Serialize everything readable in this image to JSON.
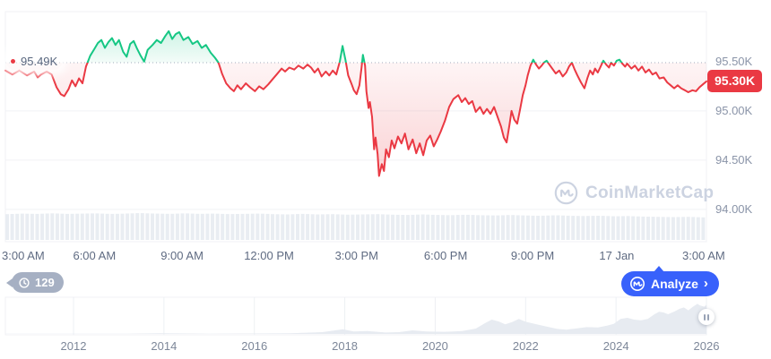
{
  "main_chart": {
    "baseline_label": "95.49K",
    "baseline_value": 95.49,
    "current_price_label": "95.30K",
    "current_price_value": 95.3,
    "y_ticks": [
      {
        "label": "95.50K",
        "value": 95.5,
        "grid": false
      },
      {
        "label": "95.00K",
        "value": 95.0,
        "grid": true
      },
      {
        "label": "94.50K",
        "value": 94.5,
        "grid": true
      },
      {
        "label": "94.00K",
        "value": 94.0,
        "grid": true
      }
    ],
    "x_ticks": [
      {
        "label": "3:00 AM",
        "f": 0.003
      },
      {
        "label": "6:00 AM",
        "f": 0.127
      },
      {
        "label": "9:00 AM",
        "f": 0.252
      },
      {
        "label": "12:00 PM",
        "f": 0.376
      },
      {
        "label": "3:00 PM",
        "f": 0.501
      },
      {
        "label": "6:00 PM",
        "f": 0.628
      },
      {
        "label": "9:00 PM",
        "f": 0.752
      },
      {
        "label": "17 Jan",
        "f": 0.872
      },
      {
        "label": "3:00 AM",
        "f": 0.996
      }
    ]
  },
  "watermark": {
    "text": "CoinMarketCap",
    "icon": "coinmarketcap-logo-icon"
  },
  "history_badge": {
    "count": "129",
    "icon": "clock-history-icon"
  },
  "analyze_button": {
    "label": "Analyze",
    "chevron": "›",
    "icon": "coinmarketcap-logo-icon"
  },
  "navigator": {
    "year_ticks": [
      {
        "label": "2012",
        "year": 2012
      },
      {
        "label": "2014",
        "year": 2014
      },
      {
        "label": "2016",
        "year": 2016
      },
      {
        "label": "2018",
        "year": 2018
      },
      {
        "label": "2020",
        "year": 2020
      },
      {
        "label": "2022",
        "year": 2022
      },
      {
        "label": "2024",
        "year": 2024
      },
      {
        "label": "2026",
        "year": 2026
      }
    ],
    "handle_icon": "pause-handle-icon"
  },
  "colors": {
    "up": "#16c784",
    "down": "#ea3943",
    "accent_blue": "#3861fb",
    "badge_gray": "#a6b0c3",
    "axis_text": "#8a94a8",
    "x_axis_text": "#5f6b82",
    "gridline": "#f0f2f5",
    "dotted_baseline": "#a2abbc",
    "volume_fill": "#e9edf2",
    "nav_fill": "#e7ebf1",
    "watermark": "#ccd3e1"
  },
  "chart_data": [
    {
      "type": "line",
      "name": "BTC price, 24h window (3:00 AM to 3:00 AM / 17 Jan)",
      "y_unit": "thousand USD",
      "x_unit": "fraction of visible time window",
      "baseline": 95.49,
      "up_color": "#16c784",
      "down_color": "#ea3943",
      "points": [
        [
          0.0,
          95.41
        ],
        [
          0.01,
          95.37
        ],
        [
          0.02,
          95.41
        ],
        [
          0.031,
          95.36
        ],
        [
          0.041,
          95.4
        ],
        [
          0.046,
          95.34
        ],
        [
          0.051,
          95.37
        ],
        [
          0.059,
          95.4
        ],
        [
          0.066,
          95.37
        ],
        [
          0.073,
          95.24
        ],
        [
          0.079,
          95.17
        ],
        [
          0.084,
          95.15
        ],
        [
          0.09,
          95.22
        ],
        [
          0.095,
          95.31
        ],
        [
          0.1,
          95.25
        ],
        [
          0.105,
          95.33
        ],
        [
          0.11,
          95.28
        ],
        [
          0.115,
          95.45
        ],
        [
          0.121,
          95.56
        ],
        [
          0.127,
          95.63
        ],
        [
          0.132,
          95.69
        ],
        [
          0.137,
          95.72
        ],
        [
          0.142,
          95.64
        ],
        [
          0.147,
          95.7
        ],
        [
          0.152,
          95.74
        ],
        [
          0.157,
          95.67
        ],
        [
          0.162,
          95.72
        ],
        [
          0.168,
          95.6
        ],
        [
          0.173,
          95.55
        ],
        [
          0.178,
          95.68
        ],
        [
          0.183,
          95.71
        ],
        [
          0.188,
          95.63
        ],
        [
          0.193,
          95.56
        ],
        [
          0.198,
          95.5
        ],
        [
          0.203,
          95.62
        ],
        [
          0.21,
          95.67
        ],
        [
          0.216,
          95.72
        ],
        [
          0.222,
          95.69
        ],
        [
          0.228,
          95.76
        ],
        [
          0.233,
          95.81
        ],
        [
          0.238,
          95.73
        ],
        [
          0.243,
          95.78
        ],
        [
          0.248,
          95.8
        ],
        [
          0.254,
          95.72
        ],
        [
          0.261,
          95.75
        ],
        [
          0.267,
          95.68
        ],
        [
          0.274,
          95.71
        ],
        [
          0.28,
          95.64
        ],
        [
          0.286,
          95.67
        ],
        [
          0.293,
          95.59
        ],
        [
          0.299,
          95.54
        ],
        [
          0.304,
          95.49
        ],
        [
          0.309,
          95.38
        ],
        [
          0.315,
          95.28
        ],
        [
          0.321,
          95.23
        ],
        [
          0.326,
          95.2
        ],
        [
          0.331,
          95.26
        ],
        [
          0.336,
          95.22
        ],
        [
          0.343,
          95.28
        ],
        [
          0.349,
          95.24
        ],
        [
          0.356,
          95.2
        ],
        [
          0.362,
          95.25
        ],
        [
          0.368,
          95.22
        ],
        [
          0.375,
          95.27
        ],
        [
          0.381,
          95.32
        ],
        [
          0.387,
          95.37
        ],
        [
          0.394,
          95.43
        ],
        [
          0.399,
          95.4
        ],
        [
          0.405,
          95.44
        ],
        [
          0.412,
          95.42
        ],
        [
          0.418,
          95.46
        ],
        [
          0.425,
          95.43
        ],
        [
          0.431,
          95.47
        ],
        [
          0.436,
          95.44
        ],
        [
          0.441,
          95.39
        ],
        [
          0.446,
          95.43
        ],
        [
          0.451,
          95.35
        ],
        [
          0.457,
          95.4
        ],
        [
          0.462,
          95.36
        ],
        [
          0.467,
          95.41
        ],
        [
          0.472,
          95.37
        ],
        [
          0.477,
          95.5
        ],
        [
          0.481,
          95.66
        ],
        [
          0.485,
          95.52
        ],
        [
          0.489,
          95.36
        ],
        [
          0.494,
          95.27
        ],
        [
          0.497,
          95.21
        ],
        [
          0.501,
          95.17
        ],
        [
          0.505,
          95.26
        ],
        [
          0.508,
          95.44
        ],
        [
          0.51,
          95.57
        ],
        [
          0.513,
          95.46
        ],
        [
          0.515,
          95.2
        ],
        [
          0.518,
          95.03
        ],
        [
          0.52,
          95.09
        ],
        [
          0.523,
          94.94
        ],
        [
          0.526,
          94.61
        ],
        [
          0.528,
          94.73
        ],
        [
          0.531,
          94.56
        ],
        [
          0.533,
          94.34
        ],
        [
          0.537,
          94.46
        ],
        [
          0.54,
          94.39
        ],
        [
          0.543,
          94.61
        ],
        [
          0.547,
          94.53
        ],
        [
          0.551,
          94.7
        ],
        [
          0.555,
          94.62
        ],
        [
          0.56,
          94.74
        ],
        [
          0.565,
          94.67
        ],
        [
          0.57,
          94.77
        ],
        [
          0.575,
          94.61
        ],
        [
          0.581,
          94.71
        ],
        [
          0.586,
          94.57
        ],
        [
          0.591,
          94.67
        ],
        [
          0.596,
          94.55
        ],
        [
          0.601,
          94.7
        ],
        [
          0.606,
          94.75
        ],
        [
          0.611,
          94.64
        ],
        [
          0.616,
          94.71
        ],
        [
          0.621,
          94.79
        ],
        [
          0.627,
          94.9
        ],
        [
          0.633,
          95.04
        ],
        [
          0.639,
          95.12
        ],
        [
          0.646,
          95.16
        ],
        [
          0.651,
          95.09
        ],
        [
          0.656,
          95.13
        ],
        [
          0.661,
          95.07
        ],
        [
          0.666,
          95.1
        ],
        [
          0.671,
          94.99
        ],
        [
          0.677,
          95.04
        ],
        [
          0.682,
          94.97
        ],
        [
          0.687,
          95.02
        ],
        [
          0.692,
          94.97
        ],
        [
          0.697,
          95.04
        ],
        [
          0.702,
          94.94
        ],
        [
          0.707,
          94.84
        ],
        [
          0.711,
          94.73
        ],
        [
          0.715,
          94.68
        ],
        [
          0.719,
          94.86
        ],
        [
          0.722,
          95.0
        ],
        [
          0.726,
          94.91
        ],
        [
          0.73,
          94.87
        ],
        [
          0.734,
          95.01
        ],
        [
          0.738,
          95.16
        ],
        [
          0.742,
          95.26
        ],
        [
          0.745,
          95.36
        ],
        [
          0.749,
          95.46
        ],
        [
          0.753,
          95.52
        ],
        [
          0.757,
          95.47
        ],
        [
          0.761,
          95.43
        ],
        [
          0.765,
          95.46
        ],
        [
          0.768,
          95.49
        ],
        [
          0.772,
          95.51
        ],
        [
          0.776,
          95.47
        ],
        [
          0.78,
          95.43
        ],
        [
          0.785,
          95.38
        ],
        [
          0.79,
          95.41
        ],
        [
          0.795,
          95.35
        ],
        [
          0.8,
          95.39
        ],
        [
          0.804,
          95.45
        ],
        [
          0.808,
          95.49
        ],
        [
          0.812,
          95.42
        ],
        [
          0.816,
          95.36
        ],
        [
          0.821,
          95.29
        ],
        [
          0.826,
          95.23
        ],
        [
          0.83,
          95.33
        ],
        [
          0.834,
          95.41
        ],
        [
          0.838,
          95.37
        ],
        [
          0.841,
          95.43
        ],
        [
          0.845,
          95.39
        ],
        [
          0.849,
          95.45
        ],
        [
          0.853,
          95.51
        ],
        [
          0.857,
          95.47
        ],
        [
          0.861,
          95.44
        ],
        [
          0.864,
          95.49
        ],
        [
          0.868,
          95.46
        ],
        [
          0.872,
          95.51
        ],
        [
          0.876,
          95.52
        ],
        [
          0.88,
          95.48
        ],
        [
          0.884,
          95.45
        ],
        [
          0.887,
          95.48
        ],
        [
          0.893,
          95.43
        ],
        [
          0.898,
          95.46
        ],
        [
          0.903,
          95.41
        ],
        [
          0.908,
          95.45
        ],
        [
          0.913,
          95.39
        ],
        [
          0.918,
          95.42
        ],
        [
          0.923,
          95.37
        ],
        [
          0.928,
          95.39
        ],
        [
          0.933,
          95.33
        ],
        [
          0.939,
          95.34
        ],
        [
          0.944,
          95.29
        ],
        [
          0.949,
          95.26
        ],
        [
          0.954,
          95.23
        ],
        [
          0.959,
          95.26
        ],
        [
          0.964,
          95.23
        ],
        [
          0.969,
          95.21
        ],
        [
          0.974,
          95.19
        ],
        [
          0.98,
          95.21
        ],
        [
          0.985,
          95.2
        ],
        [
          0.99,
          95.24
        ],
        [
          0.995,
          95.27
        ],
        [
          1.0,
          95.3
        ]
      ]
    },
    {
      "type": "bar",
      "name": "volume band (bottom of main chart)",
      "y_unit": "relative height 0-1",
      "heights": [
        0.96,
        0.98,
        0.97,
        0.99,
        0.97,
        0.98,
        0.99,
        0.97,
        0.98,
        1.0,
        0.98,
        0.97,
        0.99,
        0.97,
        0.98,
        0.96,
        0.97,
        0.98,
        0.96,
        0.95,
        0.97,
        0.95,
        0.96,
        0.94,
        0.95,
        0.96,
        0.94,
        0.93,
        0.95,
        0.93,
        0.92,
        0.94,
        0.92,
        0.91,
        0.93,
        0.91,
        0.9,
        0.92,
        0.9,
        0.89,
        0.9,
        0.88,
        0.89,
        0.87,
        0.86,
        0.85,
        0.86,
        0.84
      ]
    },
    {
      "type": "area",
      "name": "BTC all-time price navigator (2011-2026)",
      "x_unit": "year",
      "y_unit": "relative height 0-1",
      "points": [
        [
          2010.5,
          0.004
        ],
        [
          2011,
          0.004
        ],
        [
          2012,
          0.005
        ],
        [
          2012.8,
          0.008
        ],
        [
          2013.2,
          0.006
        ],
        [
          2013.9,
          0.02
        ],
        [
          2014.3,
          0.014
        ],
        [
          2015,
          0.006
        ],
        [
          2016,
          0.012
        ],
        [
          2016.8,
          0.02
        ],
        [
          2017.5,
          0.05
        ],
        [
          2017.95,
          0.13
        ],
        [
          2018.2,
          0.07
        ],
        [
          2018.5,
          0.08
        ],
        [
          2018.9,
          0.04
        ],
        [
          2019.2,
          0.05
        ],
        [
          2019.5,
          0.1
        ],
        [
          2019.8,
          0.07
        ],
        [
          2020.2,
          0.06
        ],
        [
          2020.6,
          0.08
        ],
        [
          2020.9,
          0.15
        ],
        [
          2021.1,
          0.3
        ],
        [
          2021.25,
          0.4
        ],
        [
          2021.4,
          0.35
        ],
        [
          2021.55,
          0.27
        ],
        [
          2021.7,
          0.33
        ],
        [
          2021.85,
          0.42
        ],
        [
          2022.0,
          0.34
        ],
        [
          2022.2,
          0.28
        ],
        [
          2022.45,
          0.21
        ],
        [
          2022.7,
          0.14
        ],
        [
          2022.9,
          0.12
        ],
        [
          2023.1,
          0.15
        ],
        [
          2023.35,
          0.19
        ],
        [
          2023.6,
          0.18
        ],
        [
          2023.8,
          0.23
        ],
        [
          2023.95,
          0.28
        ],
        [
          2024.1,
          0.42
        ],
        [
          2024.25,
          0.45
        ],
        [
          2024.4,
          0.4
        ],
        [
          2024.55,
          0.38
        ],
        [
          2024.7,
          0.42
        ],
        [
          2024.85,
          0.55
        ],
        [
          2024.95,
          0.62
        ],
        [
          2025.05,
          0.6
        ],
        [
          2025.15,
          0.55
        ],
        [
          2025.3,
          0.63
        ],
        [
          2025.4,
          0.7
        ],
        [
          2025.5,
          0.74
        ],
        [
          2025.6,
          0.66
        ],
        [
          2025.7,
          0.76
        ],
        [
          2025.8,
          0.84
        ],
        [
          2025.85,
          0.8
        ],
        [
          2025.95,
          0.76
        ],
        [
          2026.05,
          0.82
        ]
      ]
    }
  ]
}
